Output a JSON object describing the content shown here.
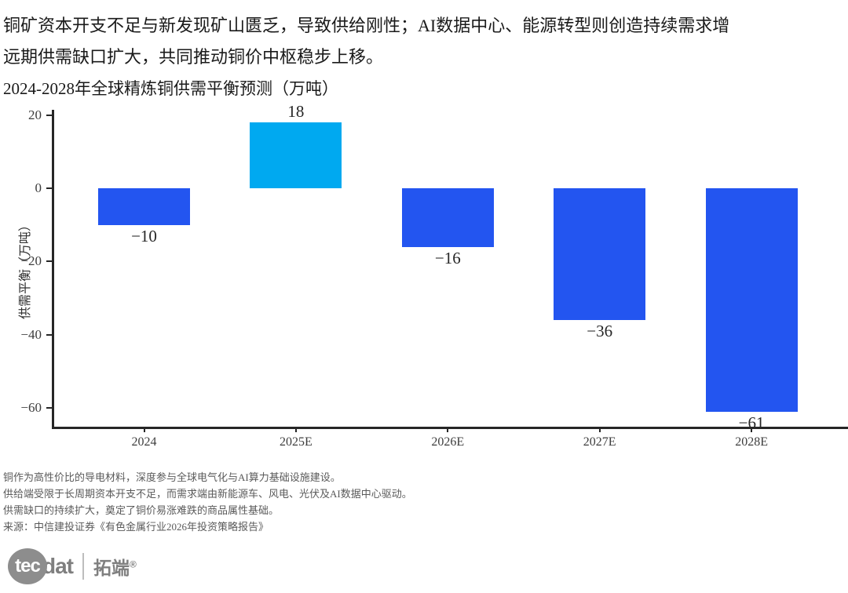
{
  "header": {
    "line1": "铜矿资本开支不足与新发现矿山匮乏，导致供给刚性；AI数据中心、能源转型则创造持续需求增",
    "line2": "远期供需缺口扩大，共同推动铜价中枢稳步上移。"
  },
  "chart_data": {
    "type": "bar",
    "title": "2024-2028年全球精炼铜供需平衡预测（万吨）",
    "categories": [
      "2024",
      "2025E",
      "2026E",
      "2027E",
      "2028E"
    ],
    "values": [
      -10,
      18,
      -16,
      -36,
      -61
    ],
    "xlabel": "",
    "ylabel": "供需平衡（万吨）",
    "y_ticks": [
      20,
      0,
      -20,
      -40,
      -60
    ],
    "ylim": [
      -67,
      22
    ],
    "grid": false,
    "legend": false,
    "positive_color": "#00a9f0",
    "negative_color": "#2355f0",
    "value_labels": [
      "-10",
      "18",
      "-16",
      "-36",
      "-61"
    ]
  },
  "footer": {
    "notes": [
      "铜作为高性价比的导电材料，深度参与全球电气化与AI算力基础设施建设。",
      "供给端受限于长周期资本开支不足，而需求端由新能源车、风电、光伏及AI数据中心驱动。",
      "供需缺口的持续扩大，奠定了铜价易涨难跌的商品属性基础。",
      "来源：中信建投证券《有色金属行业2026年投资策略报告》"
    ]
  },
  "logo": {
    "circle_text": "tec",
    "suffix": "dat",
    "cn_text": "拓端",
    "reg_mark": "®"
  }
}
